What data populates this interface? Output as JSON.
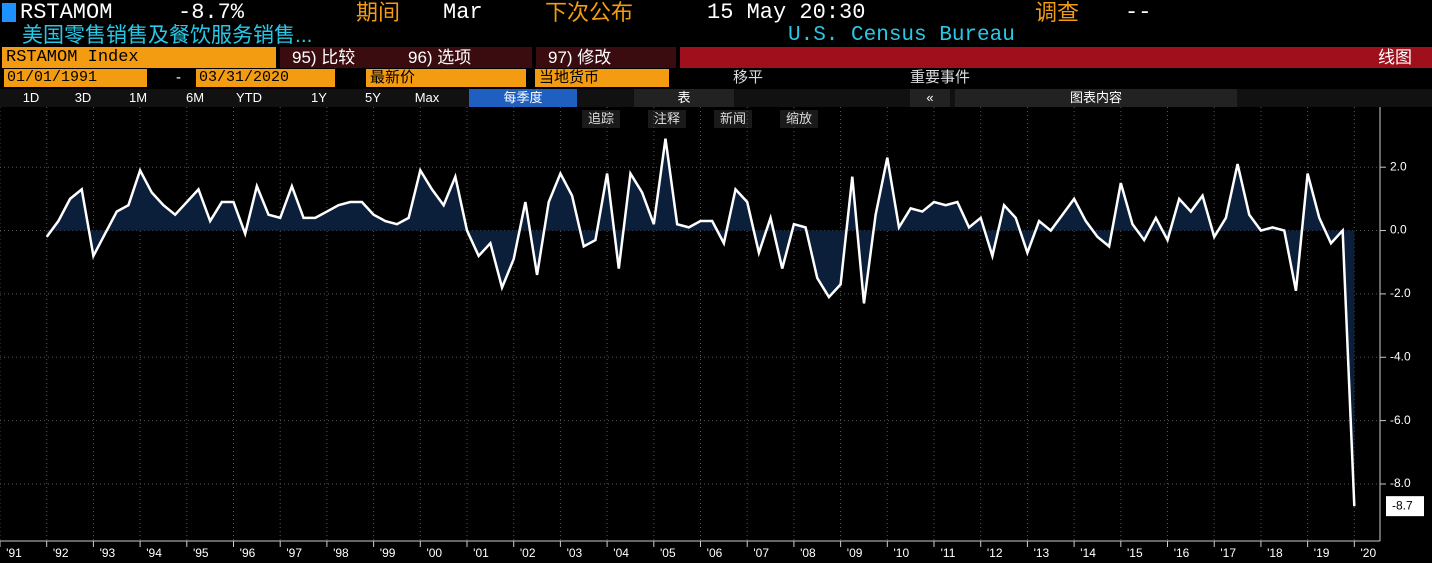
{
  "ui": {
    "ticker": "RSTAMOM",
    "change": "-8.7%",
    "period_label": "期间",
    "period": "Mar",
    "next_label": "下次公布",
    "next_release": "15 May 20:30",
    "survey_label": "调查",
    "survey": "--",
    "description": "美国零售销售及餐饮服务销售...",
    "source": "U.S. Census Bureau",
    "security": "RSTAMOM Index",
    "menu": [
      "95) 比较",
      "96) 选项",
      "97) 修改"
    ],
    "chart_kind": "线图",
    "start_date": "01/01/1991",
    "date_sep": "-",
    "end_date": "03/31/2020",
    "price_field": "最新价",
    "currency": "当地货币",
    "smoothing": "移平",
    "events": "重要事件",
    "ranges": [
      "1D",
      "3D",
      "1M",
      "6M",
      "YTD",
      "1Y",
      "5Y",
      "Max"
    ],
    "frequency": "每季度",
    "table": "表",
    "collapse": "«",
    "chart_content": "图表内容",
    "tools": [
      "追踪",
      "注释",
      "新闻",
      "缩放"
    ]
  },
  "chart_data": {
    "type": "area",
    "x": [
      1992,
      1992.25,
      1992.5,
      1992.75,
      1993,
      1993.25,
      1993.5,
      1993.75,
      1994,
      1994.25,
      1994.5,
      1994.75,
      1995,
      1995.25,
      1995.5,
      1995.75,
      1996,
      1996.25,
      1996.5,
      1996.75,
      1997,
      1997.25,
      1997.5,
      1997.75,
      1998,
      1998.25,
      1998.5,
      1998.75,
      1999,
      1999.25,
      1999.5,
      1999.75,
      2000,
      2000.25,
      2000.5,
      2000.75,
      2001,
      2001.25,
      2001.5,
      2001.75,
      2002,
      2002.25,
      2002.5,
      2002.75,
      2003,
      2003.25,
      2003.5,
      2003.75,
      2004,
      2004.25,
      2004.5,
      2004.75,
      2005,
      2005.25,
      2005.5,
      2005.75,
      2006,
      2006.25,
      2006.5,
      2006.75,
      2007,
      2007.25,
      2007.5,
      2007.75,
      2008,
      2008.25,
      2008.5,
      2008.75,
      2009,
      2009.25,
      2009.5,
      2009.75,
      2010,
      2010.25,
      2010.5,
      2010.75,
      2011,
      2011.25,
      2011.5,
      2011.75,
      2012,
      2012.25,
      2012.5,
      2012.75,
      2013,
      2013.25,
      2013.5,
      2013.75,
      2014,
      2014.25,
      2014.5,
      2014.75,
      2015,
      2015.25,
      2015.5,
      2015.75,
      2016,
      2016.25,
      2016.5,
      2016.75,
      2017,
      2017.25,
      2017.5,
      2017.75,
      2018,
      2018.25,
      2018.5,
      2018.75,
      2019,
      2019.25,
      2019.5,
      2019.75,
      2020
    ],
    "series": [
      {
        "name": "RSTAMOM Index",
        "color": "#ffffff",
        "fill": "#0b1e3a",
        "values": [
          -0.2,
          0.3,
          1.0,
          1.3,
          -0.8,
          -0.1,
          0.6,
          0.8,
          1.9,
          1.2,
          0.8,
          0.5,
          0.9,
          1.3,
          0.3,
          0.9,
          0.9,
          -0.1,
          1.4,
          0.5,
          0.4,
          1.4,
          0.4,
          0.4,
          0.6,
          0.8,
          0.9,
          0.9,
          0.5,
          0.3,
          0.2,
          0.4,
          1.9,
          1.3,
          0.8,
          1.7,
          0.0,
          -0.8,
          -0.4,
          -1.8,
          -0.9,
          0.9,
          -1.4,
          0.9,
          1.8,
          1.1,
          -0.5,
          -0.3,
          1.8,
          -1.2,
          1.8,
          1.2,
          0.2,
          2.9,
          0.2,
          0.1,
          0.3,
          0.3,
          -0.4,
          1.3,
          0.9,
          -0.7,
          0.4,
          -1.2,
          0.2,
          0.1,
          -1.5,
          -2.1,
          -1.7,
          1.7,
          -2.3,
          0.5,
          2.3,
          0.1,
          0.7,
          0.6,
          0.9,
          0.8,
          0.9,
          0.1,
          0.4,
          -0.8,
          0.8,
          0.4,
          -0.7,
          0.3,
          0.0,
          0.5,
          1.0,
          0.3,
          -0.2,
          -0.5,
          1.5,
          0.2,
          -0.3,
          0.4,
          -0.3,
          1.0,
          0.6,
          1.1,
          -0.2,
          0.4,
          2.1,
          0.5,
          0.0,
          0.1,
          0.0,
          -1.9,
          1.8,
          0.4,
          -0.4,
          0.0,
          -8.7
        ]
      }
    ],
    "xlim": [
      1991,
      2020.55
    ],
    "xticks": [
      {
        "value": 1991,
        "label": "'91"
      },
      {
        "value": 1992,
        "label": "'92"
      },
      {
        "value": 1993,
        "label": "'93"
      },
      {
        "value": 1994,
        "label": "'94"
      },
      {
        "value": 1995,
        "label": "'95"
      },
      {
        "value": 1996,
        "label": "'96"
      },
      {
        "value": 1997,
        "label": "'97"
      },
      {
        "value": 1998,
        "label": "'98"
      },
      {
        "value": 1999,
        "label": "'99"
      },
      {
        "value": 2000,
        "label": "'00"
      },
      {
        "value": 2001,
        "label": "'01"
      },
      {
        "value": 2002,
        "label": "'02"
      },
      {
        "value": 2003,
        "label": "'03"
      },
      {
        "value": 2004,
        "label": "'04"
      },
      {
        "value": 2005,
        "label": "'05"
      },
      {
        "value": 2006,
        "label": "'06"
      },
      {
        "value": 2007,
        "label": "'07"
      },
      {
        "value": 2008,
        "label": "'08"
      },
      {
        "value": 2009,
        "label": "'09"
      },
      {
        "value": 2010,
        "label": "'10"
      },
      {
        "value": 2011,
        "label": "'11"
      },
      {
        "value": 2012,
        "label": "'12"
      },
      {
        "value": 2013,
        "label": "'13"
      },
      {
        "value": 2014,
        "label": "'14"
      },
      {
        "value": 2015,
        "label": "'15"
      },
      {
        "value": 2016,
        "label": "'16"
      },
      {
        "value": 2017,
        "label": "'17"
      },
      {
        "value": 2018,
        "label": "'18"
      },
      {
        "value": 2019,
        "label": "'19"
      },
      {
        "value": 2020,
        "label": "'20"
      }
    ],
    "ylim": [
      -9.8,
      3.9
    ],
    "yticks": [
      {
        "value": 2,
        "label": "2.0"
      },
      {
        "value": 0,
        "label": "0.0"
      },
      {
        "value": -2,
        "label": "-2.0"
      },
      {
        "value": -4,
        "label": "-4.0"
      },
      {
        "value": -6,
        "label": "-6.0"
      },
      {
        "value": -8,
        "label": "-8.0"
      }
    ],
    "grid": true
  }
}
